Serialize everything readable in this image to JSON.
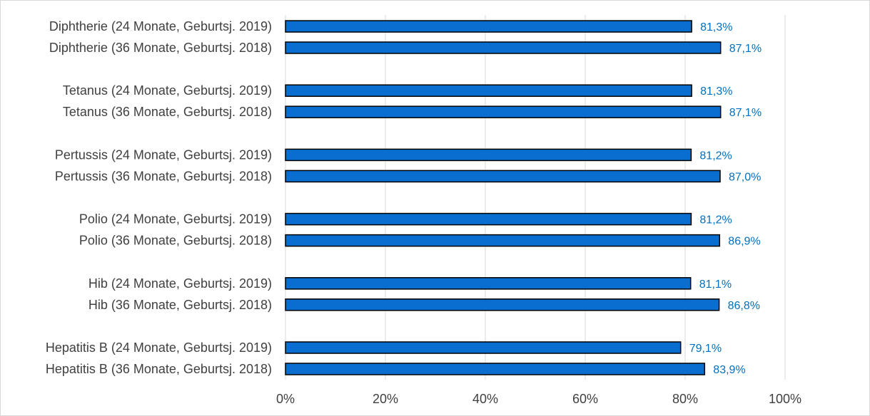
{
  "chart_data": {
    "type": "bar",
    "orientation": "horizontal",
    "categories": [
      "Diphtherie (24 Monate, Geburtsj. 2019)",
      "Diphtherie (36 Monate, Geburtsj. 2018)",
      "Tetanus (24 Monate, Geburtsj. 2019)",
      "Tetanus (36 Monate, Geburtsj. 2018)",
      "Pertussis (24 Monate, Geburtsj. 2019)",
      "Pertussis (36 Monate, Geburtsj. 2018)",
      "Polio (24 Monate, Geburtsj. 2019)",
      "Polio (36 Monate, Geburtsj. 2018)",
      "Hib (24 Monate, Geburtsj. 2019)",
      "Hib (36 Monate, Geburtsj. 2018)",
      "Hepatitis B (24 Monate, Geburtsj. 2019)",
      "Hepatitis B (36 Monate, Geburtsj. 2018)"
    ],
    "values": [
      81.3,
      87.1,
      81.3,
      87.1,
      81.2,
      87.0,
      81.2,
      86.9,
      81.1,
      86.8,
      79.1,
      83.9
    ],
    "value_labels": [
      "81,3%",
      "87,1%",
      "81,3%",
      "87,1%",
      "81,2%",
      "87,0%",
      "81,2%",
      "86,9%",
      "81,1%",
      "86,8%",
      "79,1%",
      "83,9%"
    ],
    "xlim": [
      0,
      100
    ],
    "xticks": [
      0,
      20,
      40,
      60,
      80,
      100
    ],
    "xtick_labels": [
      "0%",
      "20%",
      "40%",
      "60%",
      "80%",
      "100%"
    ],
    "grid": true,
    "legend": "none",
    "title": "",
    "xlabel": "",
    "ylabel": "",
    "colors": {
      "bar_fill": "#0a6ed1",
      "bar_stroke": "#000000",
      "data_label": "#0070c0",
      "grid": "#d9d9d9",
      "text": "#404040"
    }
  }
}
